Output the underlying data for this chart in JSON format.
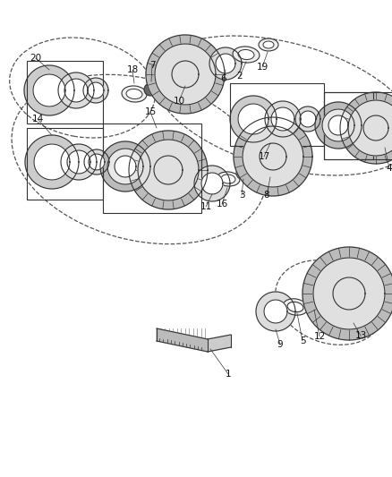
{
  "background_color": "#ffffff",
  "fig_width": 4.38,
  "fig_height": 5.33,
  "dpi": 100,
  "line_color": "#333333",
  "gear_fill": "#d8d8d8",
  "gear_teeth_fill": "#aaaaaa",
  "shaft_color": "#888888",
  "label_fontsize": 7.5,
  "label_color": "#111111"
}
